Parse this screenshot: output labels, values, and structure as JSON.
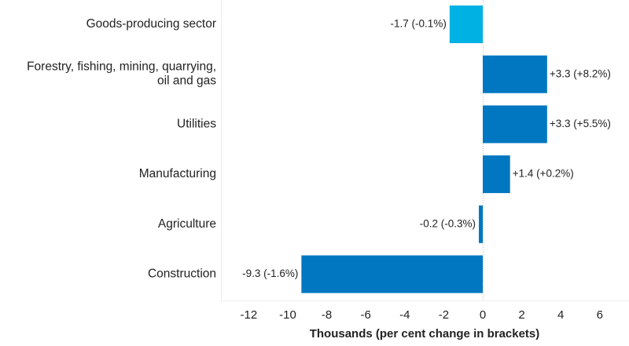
{
  "chart_data": {
    "type": "bar",
    "orientation": "horizontal",
    "title": "",
    "xlabel": "Thousands (per cent change in brackets)",
    "ylabel": "",
    "xlim": [
      -14,
      7
    ],
    "xticks": [
      -12,
      -10,
      -8,
      -6,
      -4,
      -2,
      0,
      2,
      4,
      6
    ],
    "grid": false,
    "categories": [
      [
        "Goods-producing sector"
      ],
      [
        "Forestry, fishing, mining, quarrying,",
        "oil and gas"
      ],
      [
        "Utilities"
      ],
      [
        "Manufacturing"
      ],
      [
        "Agriculture"
      ],
      [
        "Construction"
      ]
    ],
    "values": [
      -1.7,
      3.3,
      3.3,
      1.4,
      -0.2,
      -9.3
    ],
    "data_labels": [
      "-1.7 (-0.1%)",
      "+3.3 (+8.2%)",
      "+3.3 (+5.5%)",
      "+1.4 (+0.2%)",
      "-0.2 (-0.3%)",
      "-9.3 (-1.6%)"
    ],
    "colors": [
      "#00b2e3",
      "#0077c0",
      "#0077c0",
      "#0077c0",
      "#0077c0",
      "#0077c0"
    ]
  }
}
